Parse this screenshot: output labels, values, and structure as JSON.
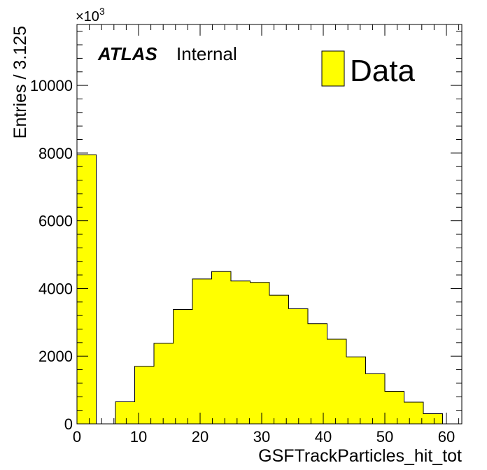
{
  "chart_data": {
    "type": "bar",
    "title": "",
    "xlabel": "GSFTrackParticles_hit_tot",
    "ylabel": "Entries / 3.125",
    "y_multiplier": "×10",
    "y_multiplier_exp": "3",
    "xlim": [
      0,
      62.5
    ],
    "ylim": [
      0,
      11800
    ],
    "x_ticks": [
      0,
      10,
      20,
      30,
      40,
      50,
      60
    ],
    "y_ticks": [
      0,
      2000,
      4000,
      6000,
      8000,
      10000
    ],
    "bin_width": 3.125,
    "bin_edges": [
      0,
      3.125,
      6.25,
      9.375,
      12.5,
      15.625,
      18.75,
      21.875,
      25,
      28.125,
      31.25,
      34.375,
      37.5,
      40.625,
      43.75,
      46.875,
      50,
      53.125,
      56.25,
      59.375,
      62.5
    ],
    "values": [
      7950,
      0,
      650,
      1700,
      2380,
      3380,
      4280,
      4500,
      4220,
      4180,
      3800,
      3400,
      2960,
      2500,
      1980,
      1480,
      960,
      640,
      300,
      0
    ],
    "fill_color": "#ffff00",
    "line_color": "#000000",
    "grid": false,
    "legend": {
      "position": "top-right",
      "entries": [
        {
          "label": "Data",
          "color": "#ffff00"
        }
      ]
    },
    "annotation": {
      "experiment": "ATLAS",
      "status": "Internal"
    }
  }
}
